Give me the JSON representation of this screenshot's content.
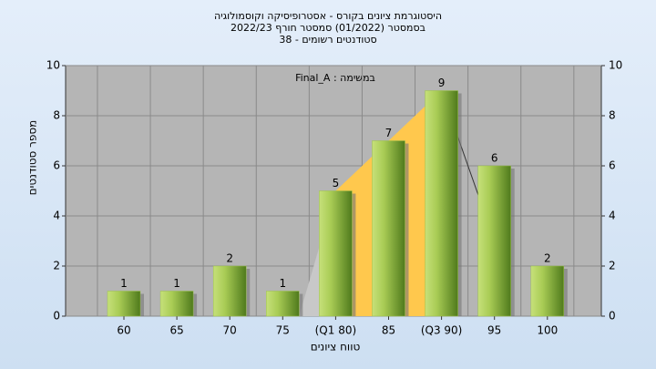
{
  "chart_data": {
    "type": "bar",
    "title": [
      "היסטוגרמת ציונים בקורס - אסטרופיסיקה וקוסמולוגיה",
      "בסמסטר (01/2022) סמסטר חורף 2022/23",
      "סטודנטים רשומים - 38"
    ],
    "annotation": "במשימה : Final_A",
    "x_label": "טווח ציונים",
    "y_label": "מספר סטודנטים",
    "categories": [
      "60",
      "65",
      "70",
      "75",
      "(Q1 80)",
      "85",
      "(Q3 90)",
      "95",
      "100"
    ],
    "values": [
      1,
      1,
      2,
      1,
      5,
      7,
      9,
      6,
      2
    ],
    "color": "#9cc24a",
    "ylim": [
      0,
      10
    ],
    "yticks": [
      0,
      2,
      4,
      6,
      8,
      10
    ],
    "grid": true
  }
}
